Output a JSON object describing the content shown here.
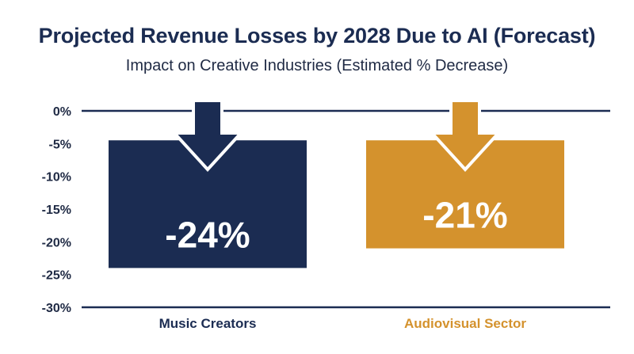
{
  "chart_data": {
    "type": "bar",
    "title": "Projected Revenue Losses by 2028 Due to AI (Forecast)",
    "subtitle": "Impact on Creative Industries (Estimated % Decrease)",
    "categories": [
      "Music Creators",
      "Audiovisual Sector"
    ],
    "values": [
      -24,
      -21
    ],
    "data_labels": [
      "-24%",
      "-21%"
    ],
    "ylim": [
      -30,
      0
    ],
    "yticks": [
      0,
      -5,
      -10,
      -15,
      -20,
      -25,
      -30
    ],
    "ytick_labels": [
      "0%",
      "-5%",
      "-10%",
      "-15%",
      "-20%",
      "-25%",
      "-30%"
    ],
    "grid": false,
    "colors": [
      "#1b2c52",
      "#d4922d"
    ],
    "category_label_colors": [
      "#1b2c52",
      "#d4922d"
    ],
    "decoration_icon": "down-arrow-icon"
  }
}
